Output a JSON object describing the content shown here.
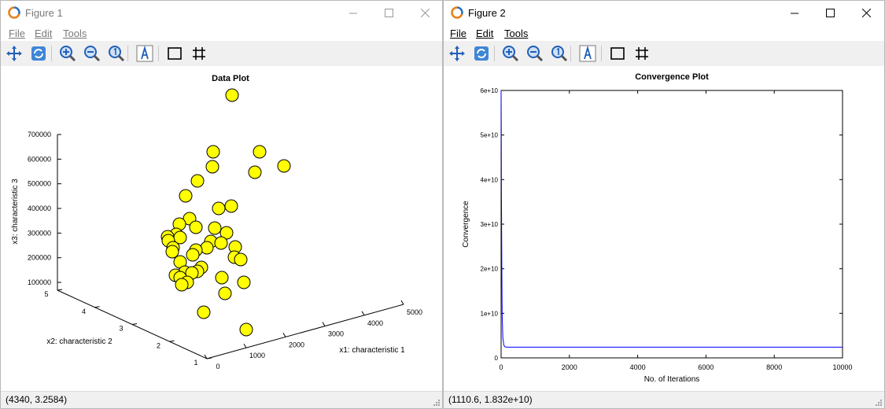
{
  "figure1": {
    "title": "Figure 1",
    "menu": {
      "file": "File",
      "edit": "Edit",
      "tools": "Tools"
    },
    "status": "(4340, 3.2584)"
  },
  "figure2": {
    "title": "Figure 2",
    "menu": {
      "file": "File",
      "edit": "Edit",
      "tools": "Tools"
    },
    "status": "(1110.6, 1.832e+10)"
  },
  "toolbar_icons": [
    "pan-icon",
    "rotate-icon",
    "zoom-in-icon",
    "zoom-out-icon",
    "zoom-reset-icon",
    "insert-text-icon",
    "toggle-box-icon",
    "toggle-grid-icon"
  ],
  "colors": {
    "marker_fill": "#ffff00",
    "line": "#0000ff",
    "toolbar_bg": "#f0f0f0"
  },
  "chart_data": [
    {
      "type": "scatter",
      "title": "Data Plot",
      "xlabel": "x1: characteristic 1",
      "ylabel": "x2: characteristic 2",
      "zlabel": "x3: characteristic 3",
      "xlim": [
        0,
        5000
      ],
      "ylim": [
        1,
        5
      ],
      "zlim": [
        100000,
        700000
      ],
      "xticks": [
        "0",
        "1000",
        "2000",
        "3000",
        "4000",
        "5000"
      ],
      "yticks": [
        "1",
        "2",
        "3",
        "4",
        "5"
      ],
      "zticks": [
        "100000",
        "200000",
        "300000",
        "400000",
        "500000",
        "600000",
        "700000"
      ],
      "projected_points": [
        [
          294,
          120
        ],
        [
          270,
          192
        ],
        [
          329,
          192
        ],
        [
          269,
          211
        ],
        [
          360,
          210
        ],
        [
          323,
          218
        ],
        [
          250,
          229
        ],
        [
          235,
          248
        ],
        [
          293,
          261
        ],
        [
          277,
          264
        ],
        [
          240,
          277
        ],
        [
          227,
          284
        ],
        [
          248,
          288
        ],
        [
          272,
          289
        ],
        [
          287,
          295
        ],
        [
          223,
          297
        ],
        [
          212,
          300
        ],
        [
          228,
          301
        ],
        [
          213,
          305
        ],
        [
          267,
          306
        ],
        [
          280,
          308
        ],
        [
          298,
          313
        ],
        [
          219,
          314
        ],
        [
          262,
          314
        ],
        [
          248,
          317
        ],
        [
          218,
          319
        ],
        [
          244,
          323
        ],
        [
          297,
          326
        ],
        [
          305,
          329
        ],
        [
          228,
          332
        ],
        [
          255,
          339
        ],
        [
          250,
          344
        ],
        [
          234,
          345
        ],
        [
          222,
          349
        ],
        [
          243,
          346
        ],
        [
          281,
          352
        ],
        [
          228,
          352
        ],
        [
          237,
          358
        ],
        [
          309,
          358
        ],
        [
          230,
          361
        ],
        [
          285,
          372
        ],
        [
          258,
          396
        ],
        [
          312,
          418
        ]
      ]
    },
    {
      "type": "line",
      "title": "Convergence Plot",
      "xlabel": "No. of Iterations",
      "ylabel": "Convergence",
      "xlim": [
        0,
        10000
      ],
      "ylim": [
        0,
        60000000000
      ],
      "xticks": [
        "0",
        "2000",
        "4000",
        "6000",
        "8000",
        "10000"
      ],
      "yticks": [
        "0",
        "1e+10",
        "2e+10",
        "3e+10",
        "4e+10",
        "5e+10",
        "6e+10"
      ],
      "series": [
        {
          "x": [
            0,
            5,
            10,
            20,
            30,
            50,
            80,
            120,
            200,
            500,
            1000,
            10000
          ],
          "y": [
            60000000000,
            52000000000,
            38000000000,
            20000000000,
            10000000000,
            4500000000,
            2800000000,
            2450000000,
            2400000000,
            2400000000,
            2400000000,
            2400000000
          ]
        }
      ]
    }
  ]
}
